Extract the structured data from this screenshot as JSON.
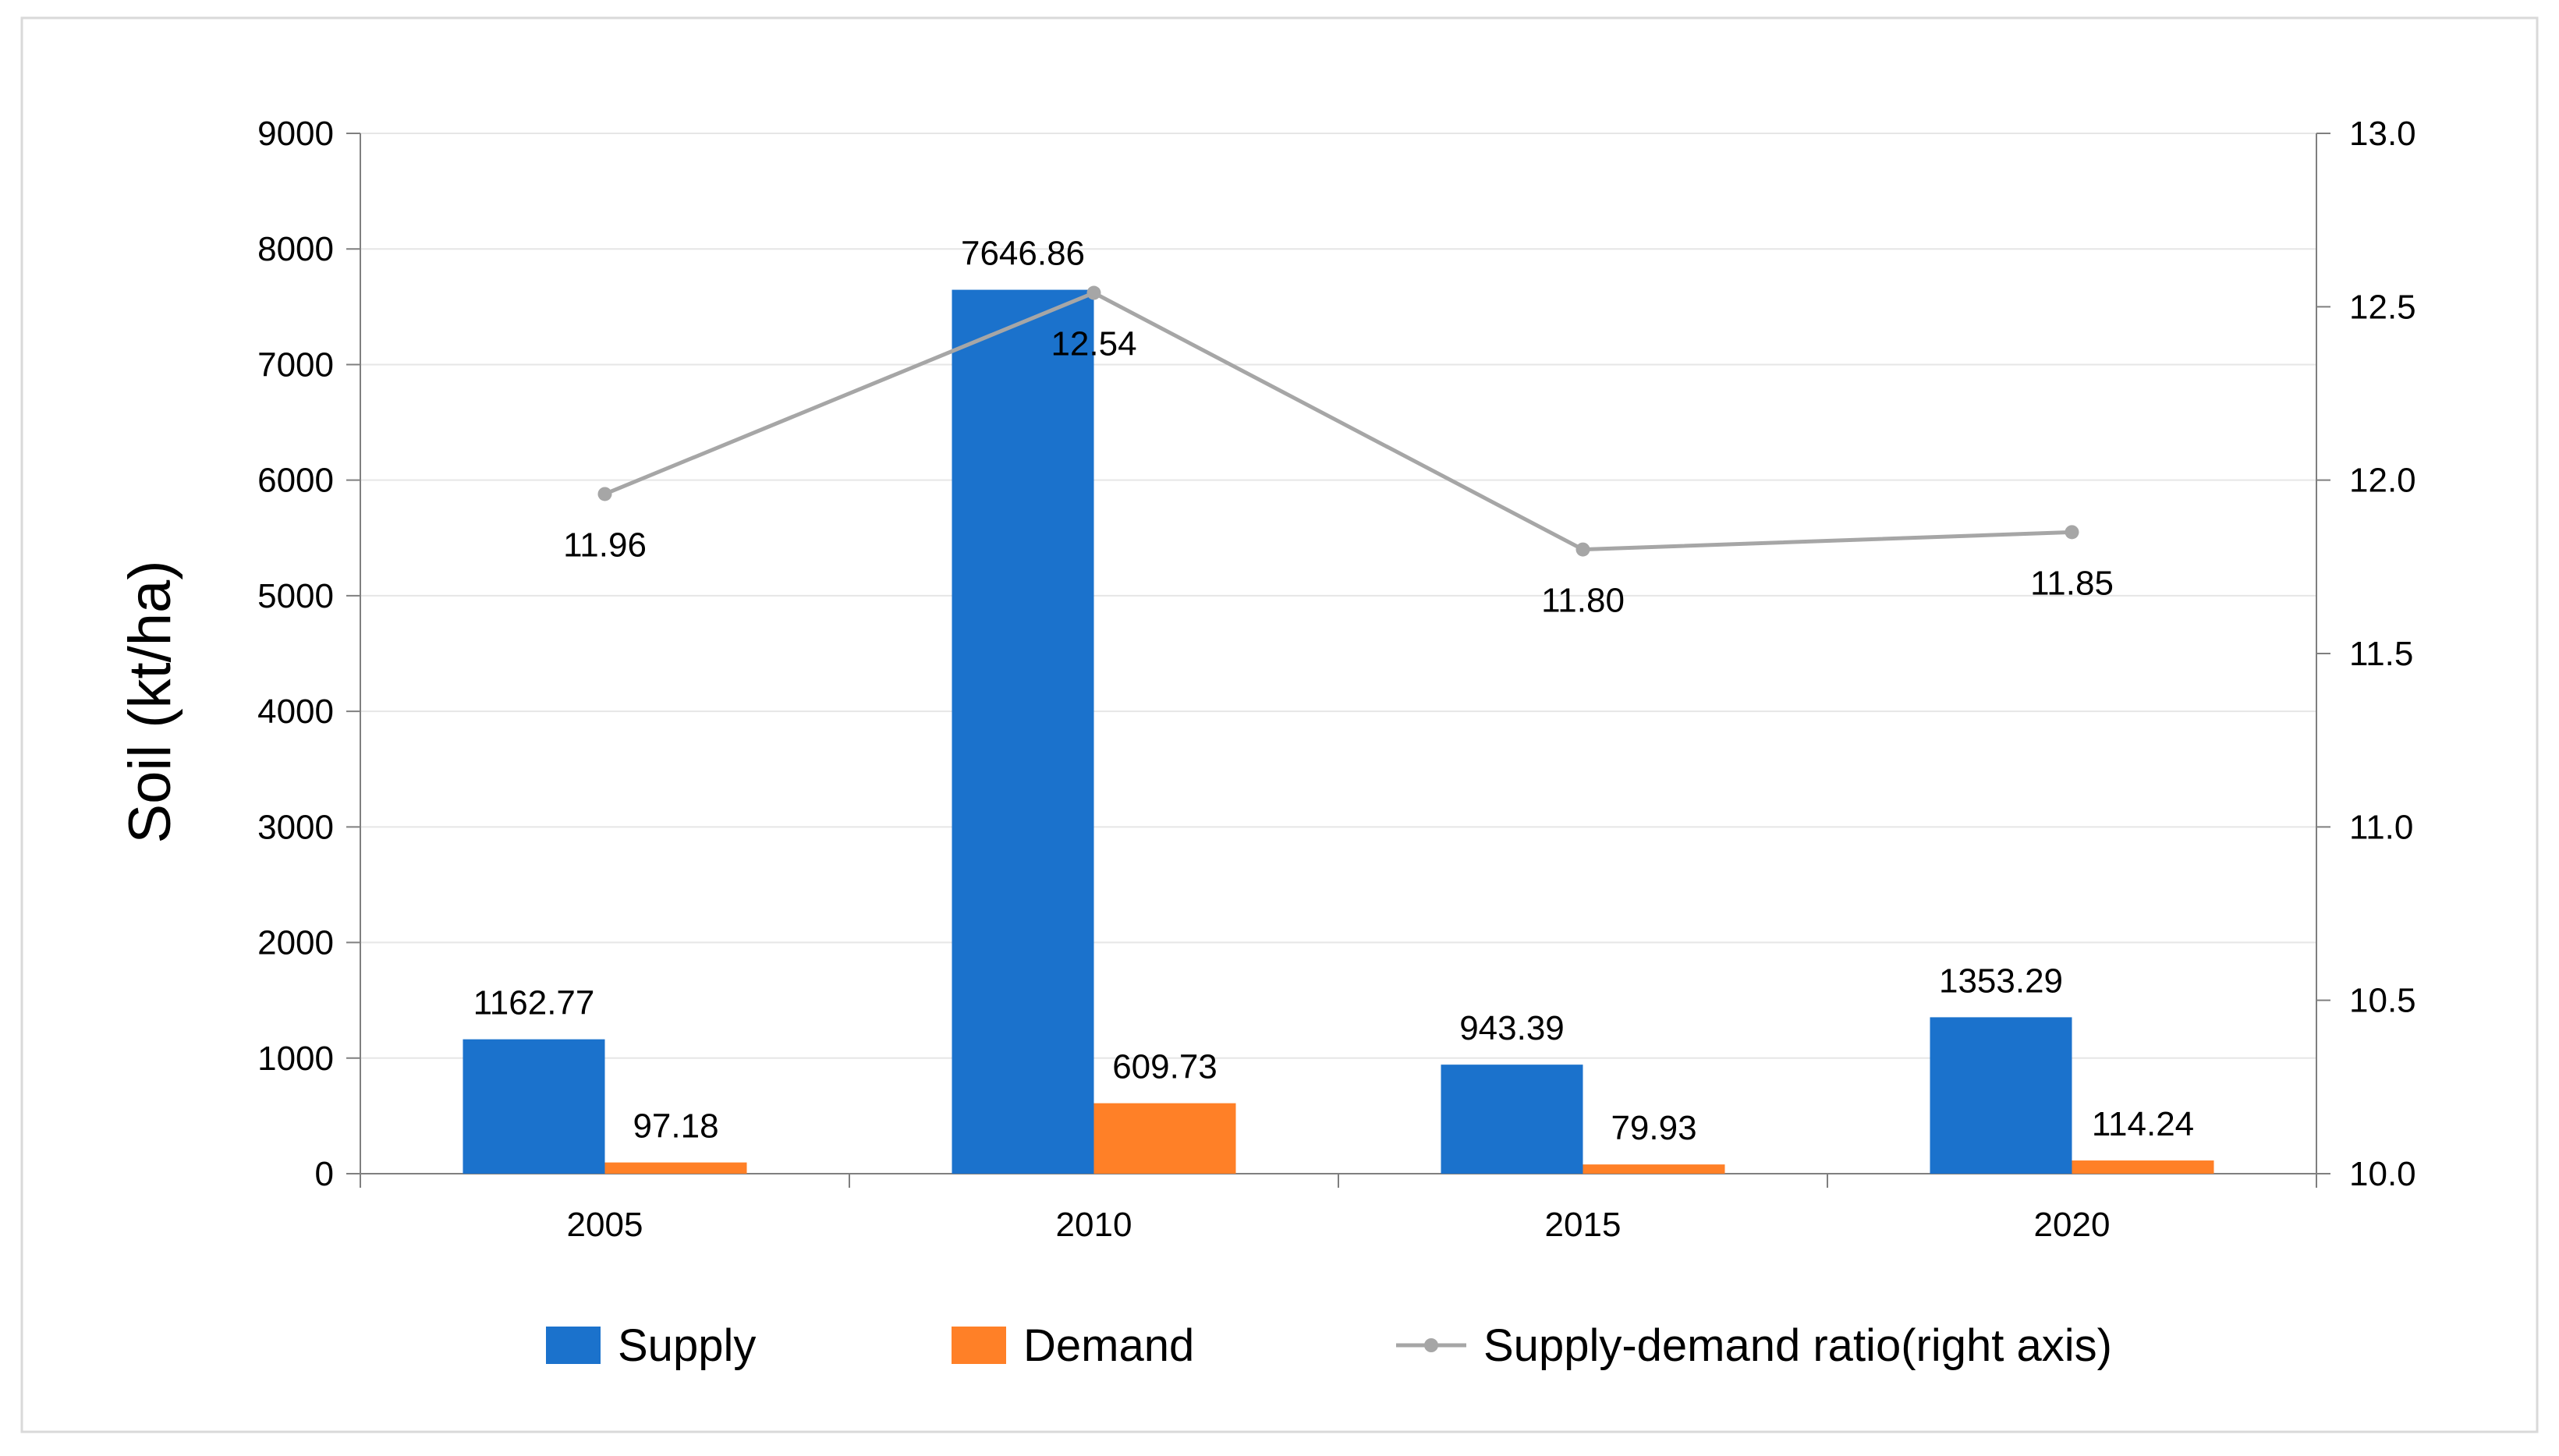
{
  "chart_data": {
    "type": "bar",
    "categories": [
      "2005",
      "2010",
      "2015",
      "2020"
    ],
    "series": [
      {
        "name": "Supply",
        "kind": "bar",
        "axis": "left",
        "color": "#1B72CC",
        "values": [
          1162.77,
          7646.86,
          943.39,
          1353.29
        ],
        "labels": [
          "1162.77",
          "7646.86",
          "943.39",
          "1353.29"
        ]
      },
      {
        "name": "Demand",
        "kind": "bar",
        "axis": "left",
        "color": "#FF8027",
        "values": [
          97.18,
          609.73,
          79.93,
          114.24
        ],
        "labels": [
          "97.18",
          "609.73",
          "79.93",
          "114.24"
        ]
      },
      {
        "name": "Supply-demand ratio(right axis)",
        "kind": "line",
        "axis": "right",
        "color": "#A6A6A6",
        "values": [
          11.96,
          12.54,
          11.8,
          11.85
        ],
        "labels": [
          "11.96",
          "12.54",
          "11.80",
          "11.85"
        ]
      }
    ],
    "ylabel": "Soil (kt/ha)",
    "ylim": [
      0,
      9000
    ],
    "yticks": [
      "0",
      "1000",
      "2000",
      "3000",
      "4000",
      "5000",
      "6000",
      "7000",
      "8000",
      "9000"
    ],
    "y2lim": [
      10.0,
      13.0
    ],
    "y2ticks": [
      "10.0",
      "10.5",
      "11.0",
      "11.5",
      "12.0",
      "12.5",
      "13.0"
    ],
    "grid": true,
    "legend_position": "bottom"
  }
}
